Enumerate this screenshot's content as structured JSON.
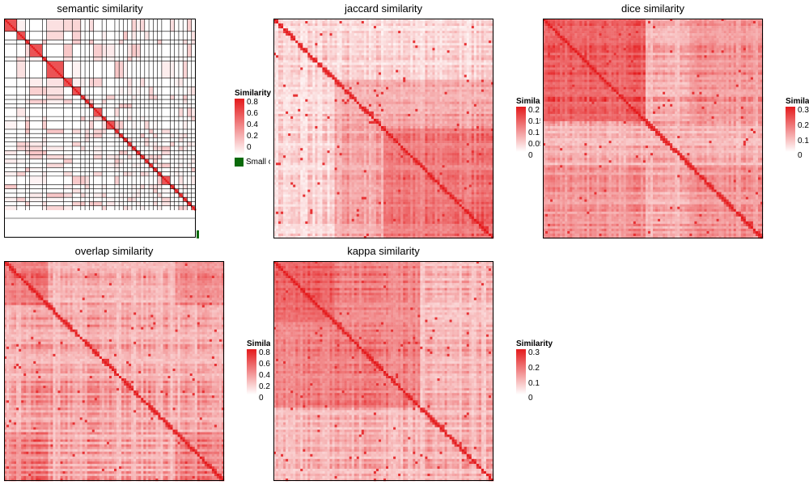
{
  "chart_data": [
    {
      "type": "heatmap",
      "id": "semantic",
      "title": "semantic similarity",
      "legend_title": "Similarity",
      "legend_ticks": [
        "0.8",
        "0.6",
        "0.4",
        "0.2",
        "0"
      ],
      "value_range": [
        0,
        0.85
      ],
      "extra_legend": {
        "label": "Small clusters",
        "color": "#0a6a0a"
      },
      "clusters": [
        3,
        2,
        1,
        3,
        1,
        4,
        2,
        2,
        1,
        1,
        1,
        2,
        1,
        2,
        1,
        1,
        1,
        1,
        1,
        1,
        1,
        1,
        1,
        1,
        1,
        2,
        1,
        1,
        1,
        1,
        1,
        1
      ],
      "grid": true
    },
    {
      "type": "heatmap",
      "id": "jaccard",
      "title": "jaccard similarity",
      "legend_title": "Similarity",
      "legend_ticks": [
        "0.2",
        "0.15",
        "0.1",
        "0.05",
        "0"
      ],
      "value_range": [
        0,
        0.2
      ]
    },
    {
      "type": "heatmap",
      "id": "dice",
      "title": "dice similarity",
      "legend_title": "Similarity",
      "legend_ticks": [
        "0.3",
        "0.2",
        "0.1",
        "0"
      ],
      "value_range": [
        0,
        0.3
      ]
    },
    {
      "type": "heatmap",
      "id": "overlap",
      "title": "overlap similarity",
      "legend_title": "Similarity",
      "legend_ticks": [
        "0.8",
        "0.6",
        "0.4",
        "0.2",
        "0"
      ],
      "value_range": [
        0,
        0.8
      ]
    },
    {
      "type": "heatmap",
      "id": "kappa",
      "title": "kappa similarity",
      "legend_title": "Similarity",
      "legend_ticks": [
        "0.3",
        "0.2",
        "0.1",
        "0"
      ],
      "value_range": [
        0,
        0.3
      ]
    }
  ],
  "colors": {
    "high": "#e41a1c",
    "low": "#ffffff",
    "border": "#000000",
    "small_clusters": "#0a6a0a"
  }
}
